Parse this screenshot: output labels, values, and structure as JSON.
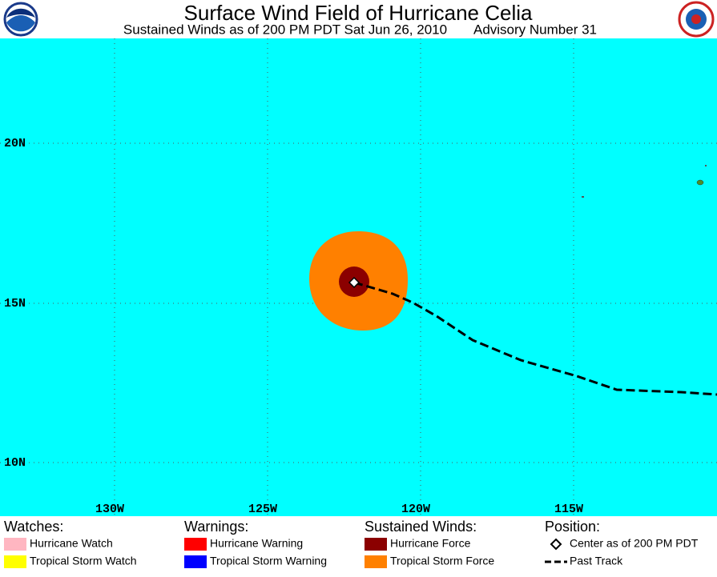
{
  "header": {
    "title": "Surface Wind Field of Hurricane Celia",
    "subtitle": "Sustained Winds as of 200 PM PDT Sat Jun 26, 2010",
    "advisory": "Advisory Number 31"
  },
  "map": {
    "lat_labels": [
      "20N",
      "15N",
      "10N"
    ],
    "lon_labels": [
      "130W",
      "125W",
      "120W",
      "115W"
    ]
  },
  "legend": {
    "watches": {
      "title": "Watches:",
      "items": [
        "Hurricane Watch",
        "Tropical Storm Watch"
      ]
    },
    "warnings": {
      "title": "Warnings:",
      "items": [
        "Hurricane Warning",
        "Tropical Storm Warning"
      ]
    },
    "winds": {
      "title": "Sustained Winds:",
      "items": [
        "Hurricane Force",
        "Tropical Storm Force"
      ]
    },
    "position": {
      "title": "Position:",
      "items": [
        "Center as of 200 PM PDT",
        "Past Track"
      ]
    }
  }
}
